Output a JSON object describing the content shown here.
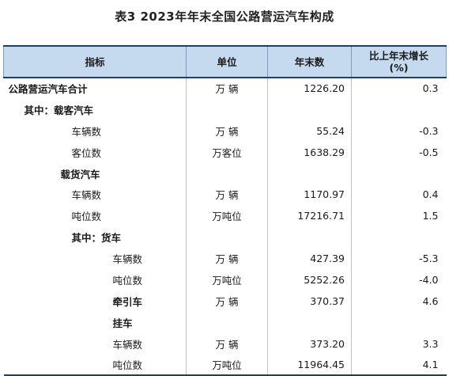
{
  "title": "表3   2023年年末全国公路营运汽车构成",
  "headers": {
    "indicator": "指标",
    "unit": "单位",
    "year_end": "年末数",
    "growth_line1": "比上年末增长",
    "growth_line2": "(%)"
  },
  "rows": [
    {
      "name": "公路营运汽车合计",
      "unit": "万  辆",
      "value": "1226.20",
      "growth": "0.3"
    },
    {
      "name": "其中：载客汽车",
      "unit": "",
      "value": "",
      "growth": ""
    },
    {
      "name": "车辆数",
      "unit": "万  辆",
      "value": "55.24",
      "growth": "-0.3"
    },
    {
      "name": "客位数",
      "unit": "万客位",
      "value": "1638.29",
      "growth": "-0.5"
    },
    {
      "name": "载货汽车",
      "unit": "",
      "value": "",
      "growth": ""
    },
    {
      "name": "车辆数",
      "unit": "万  辆",
      "value": "1170.97",
      "growth": "0.4"
    },
    {
      "name": "吨位数",
      "unit": "万吨位",
      "value": "17216.71",
      "growth": "1.5"
    },
    {
      "name": "其中：货车",
      "unit": "",
      "value": "",
      "growth": ""
    },
    {
      "name": "车辆数",
      "unit": "万  辆",
      "value": "427.39",
      "growth": "-5.3"
    },
    {
      "name": "吨位数",
      "unit": "万吨位",
      "value": "5252.26",
      "growth": "-4.0"
    },
    {
      "name": "牵引车",
      "unit": "万  辆",
      "value": "370.37",
      "growth": "4.6"
    },
    {
      "name": "挂车",
      "unit": "",
      "value": "",
      "growth": ""
    },
    {
      "name": "车辆数",
      "unit": "万  辆",
      "value": "373.20",
      "growth": "3.3"
    },
    {
      "name": "吨位数",
      "unit": "万吨位",
      "value": "11964.45",
      "growth": "4.1"
    }
  ]
}
